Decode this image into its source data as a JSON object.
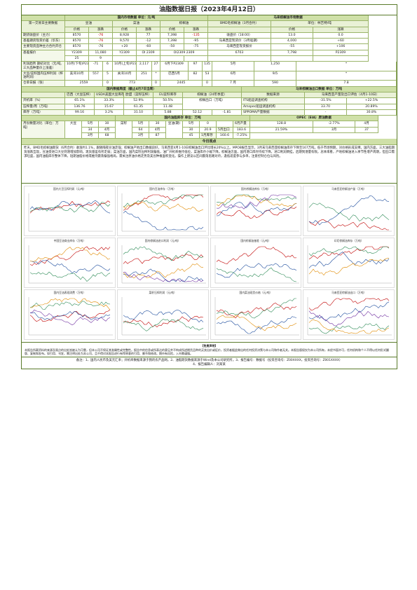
{
  "title": "油脂数据日报（2023年4月12日）",
  "t1": {
    "domestic_hdr": "国内市场数据 单位：元/吨",
    "intl_hdr": "马来棕榈油市场数据",
    "row_label_hdr": "第一交易日主要数据",
    "soy": "豆油",
    "rape": "菜油",
    "palm": "棕榈油",
    "price": "价格",
    "chg": "涨跌",
    "bmd": "BMD毛棕榈油（3月合约）",
    "bmd_unit": "单位：林吉特/吨",
    "rows": [
      {
        "label": "期货收盘价（主力）",
        "v": [
          "8570",
          "-76",
          "8,928",
          "77",
          "7,398",
          "-135",
          "收盘价（18:00）",
          "13.0",
          "0.0"
        ]
      },
      {
        "label": "基差期货现货价差（华东）",
        "v": [
          "8570",
          "-76",
          "9,570",
          "-12",
          "7,398",
          "-95",
          "马来西亚现货价（3月船期）",
          "4,000",
          "+60"
        ]
      },
      {
        "label": "主要现货品种主力合约开仓",
        "v": [
          "8570",
          "-76",
          "+20",
          "-60",
          "-50",
          "-75",
          "马来西亚现货报价",
          "-55",
          "+106"
        ]
      },
      {
        "label": "基差报价",
        "v": [
          "Y2309",
          "11,080",
          "Y2309",
          "OI 2309",
          "OI2309 2309",
          "6703",
          "7,798",
          "P2309",
          "25",
          "9"
        ]
      }
    ]
  },
  "t2": {
    "futures_hdr": "期货主力合约",
    "rows": [
      {
        "label": "利润趋势 期初对比（元/吨,三大品种量价上涨差）",
        "v": [
          "10月(下旬)P2309",
          "-71",
          "6",
          "10月(上旬)P2309",
          "2,117",
          "27",
          "6月下P2309",
          "97",
          "135",
          "5月",
          "1,250",
          "*"
        ]
      },
      {
        "label": "大豆/菜籽国内压榨利润（榨油利润）",
        "v": [
          "美湾10月",
          "557",
          "5",
          "关湾10月",
          "251",
          "*",
          "巴西5月",
          "82",
          "53",
          "6月",
          "9/5",
          "*"
        ]
      },
      {
        "label": "仓单日报（张）",
        "v": [
          "2559",
          "0",
          "773",
          "0",
          "2445",
          "0",
          "7 月",
          "590",
          "7.8"
        ]
      }
    ]
  },
  "t3": {
    "left_hdr": "国内数据周度（截止4月7日当周）",
    "right_hdr": "马来棕榈油出口数据 单位：万吨",
    "cols": [
      "巴西（大豆压榨）",
      "USDA美国大豆库存",
      "欧盟（菜籽压榨）",
      "EU菜籽库存",
      "棕榈油（24年季度）"
    ],
    "r1": {
      "label": "开机率（%）",
      "v": [
        "65.1%",
        "33.3%",
        "52.9%",
        "50.5%"
      ]
    },
    "r2": {
      "label": "压榨量/周（万吨）",
      "v": [
        "136.76",
        "15.67",
        "61.35",
        "11.48",
        "棕榈出口（万吨）"
      ]
    },
    "r3": {
      "label": "库存（万吨）",
      "v": [
        "99.16",
        "3.2%",
        "31.10",
        "5.88",
        "52.12",
        "-1.81"
      ]
    },
    "right_cols": [
      "数据来源",
      "马来西亚产量及出口评估（4月1-10日）"
    ],
    "right_rows": [
      {
        "name": "ITS船运调查机构",
        "v": [
          "-31.5%",
          "+22.5%"
        ]
      },
      {
        "name": "Amspec船运调查机构",
        "v": [
          "33.70",
          "20.89%"
        ]
      },
      {
        "name": "SPPOMA产量数据",
        "v": [
          "-",
          "30.8%"
        ]
      }
    ]
  },
  "t4": {
    "mid_hdr": "国内油脂库存 单位：万吨",
    "right_hdr": "OPEC（EIA）原油数据",
    "label": "月份数量对比（单位：万吨）",
    "left": [
      [
        "5月",
        "30",
        "+"
      ],
      [
        "4月",
        "34",
        "43"
      ],
      [
        "3月",
        "37",
        "45"
      ]
    ],
    "mid_names": [
      "大豆",
      "菜籽",
      "豆油(期)"
    ],
    "mid": [
      [
        "5月",
        "30"
      ],
      [
        "4月",
        "64"
      ],
      [
        "3月",
        "68"
      ]
    ],
    "palm": [
      [
        "5月",
        "0"
      ],
      [
        "4月",
        "30",
        "20.9"
      ],
      [
        "3月",
        "87",
        "45"
      ]
    ],
    "right": [
      [
        "6月产量",
        "128.8",
        "-2.77%"
      ],
      [
        "5月出口",
        "183.6",
        "21.59%"
      ],
      [
        "1月库存",
        "160.6",
        "-7.25%"
      ]
    ]
  },
  "summary_hdr": "今日观点",
  "summary": "昨天，BMD毛棕榈油期货（6月合约）收涨约1.1%，跟随隔夜豆油走强；棕榈油产地出口数据良好，马来西亚4月1-10日棕榈油出口环比增长20%以上。MPOB报告显示，3月末马来西亚棕榈油库存下降至167万吨，低于市场预期，对价格形成支撑。国内方面，三大油脂期货涨跌互现，豆油受进口大豆到港增加影响，现货基差有所走弱；菜油方面，国内菜籽压榨利润偏低，油厂开机率维持低位，菜油库存小幅下降。棕榈油方面，国内港口库存持续下降，进口利润倒挂，后期到港量有限。总体来看，产地棕榈油进入季节性增产周期，但出口需求旺盛，国内油脂库存整体下降，短期油脂价格或维持震荡偏强格局，需关注原油价格走势及美豆种植面积变化。操作上建议以区间震荡思路对待，逢低适度参与多单，注意控制仓位与风险。",
  "charts": [
    "国内大豆压榨利润（元/吨）",
    "国内豆油库存（万吨）",
    "国内棕榈油库存（万吨）",
    "马来西亚棕榈油产量（万吨）",
    "中国豆油商业库存（万吨）",
    "国内棕榈油进口利润（元/吨）",
    "国内棕榈油基差（元/吨）",
    "印尼棕榈油库存（万吨）",
    "国内豆油表观消费（万吨）",
    "菜籽压榨利润（元/吨）",
    "国内菜油现货价格（元/吨）",
    "马来西亚棕榈油出口（万吨）"
  ],
  "disclaimer_hdr": "【免责声明】",
  "disclaimer": "本报告所载资料的来源及观点的出处皆被认为可靠，但本公司不保证其准确性或完整性。报告中的信息或所表达的意见并不构成所述期货品种的买卖出价或征价，投资者据此做出的任何投资决策与本公司和作者无关。本报告版权仅为本公司所有，未经书面许可，任何机构和个人不得以任何形式翻版、复制和发布。如引用、刊发，需注明出处为本公司，且不得对本报告进行有悖原意的引用、删节和修改。期市有风险，入市需谨慎。",
  "note": "备注：1、国内人民币及美元汇率；开机率数据来源于我的农产品网。2、油脂期货数据来源于Wind及本公司研究所。3、报告编号：数据号（投资咨询号：Z00XXXX，投资咨询号：Z001XXXX）",
  "author": "4、报告编辑人：刘某某"
}
